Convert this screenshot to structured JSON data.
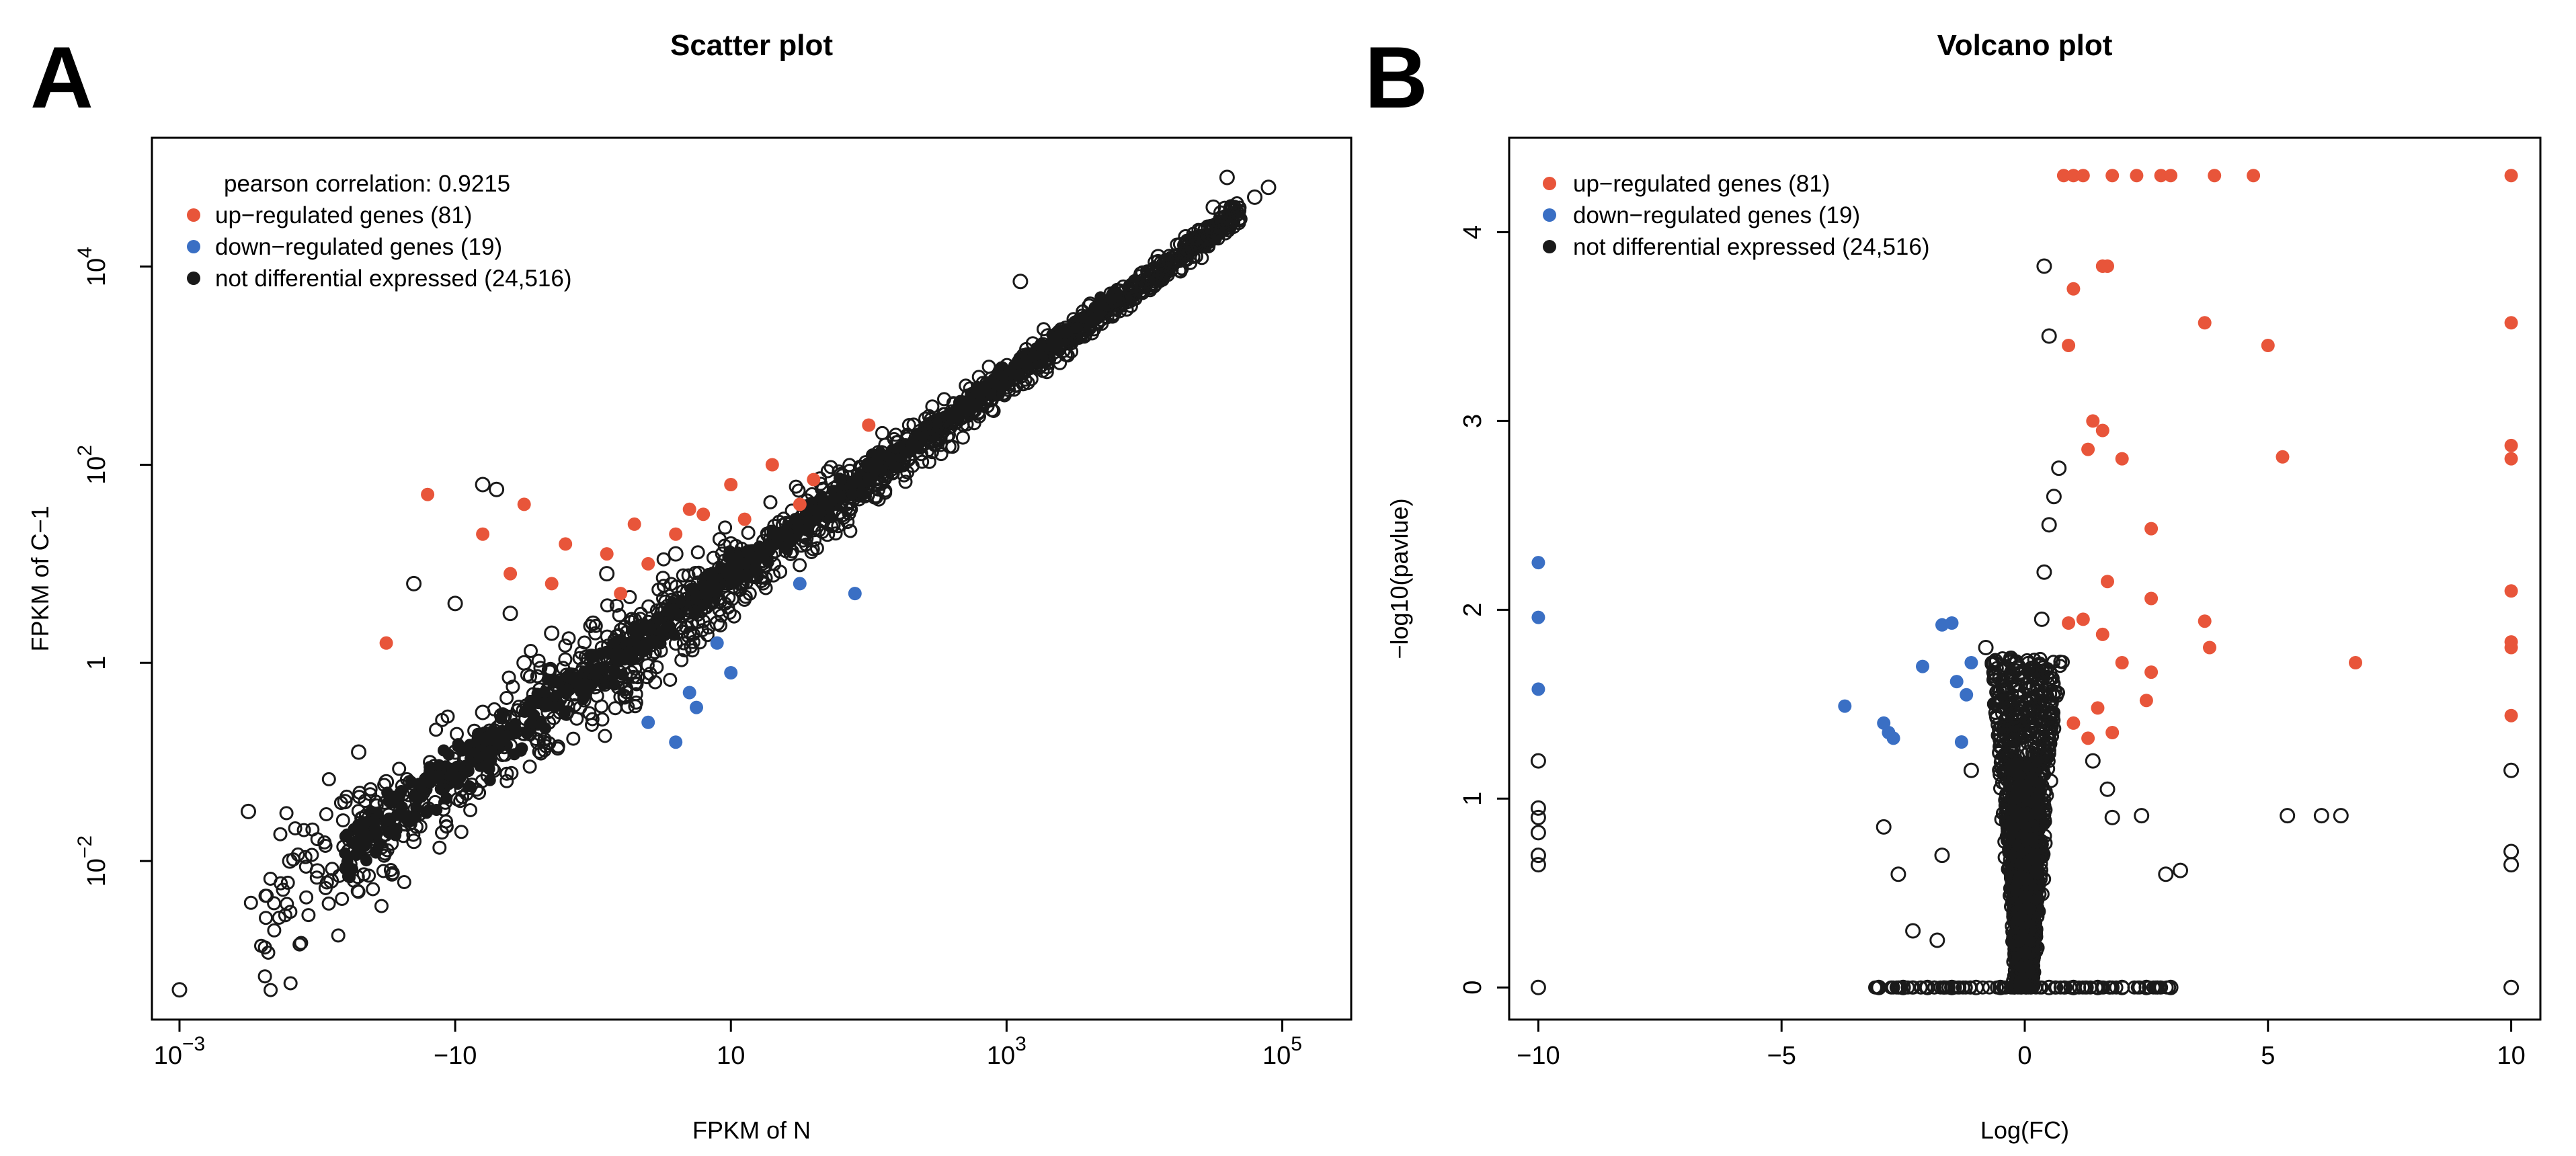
{
  "chart_data": [
    {
      "panel": "A",
      "type": "scatter",
      "title": "Scatter plot",
      "xlabel": "FPKM of N",
      "ylabel": "FPKM of C−1",
      "xscale": "log10",
      "yscale": "log10",
      "xlim_log10": [
        -3.2,
        5.5
      ],
      "ylim_log10": [
        -3.6,
        5.3
      ],
      "x_ticks": [
        {
          "value_log10": -3,
          "base": "10",
          "exp": "−3"
        },
        {
          "value_log10": -1,
          "base": "−10",
          "exp": ""
        },
        {
          "value_log10": 1,
          "base": "10",
          "exp": ""
        },
        {
          "value_log10": 3,
          "base": "10",
          "exp": "3"
        },
        {
          "value_log10": 5,
          "base": "10",
          "exp": "5"
        }
      ],
      "y_ticks": [
        {
          "value_log10": -2,
          "base": "10",
          "exp": "−2"
        },
        {
          "value_log10": 0,
          "base": "1",
          "exp": ""
        },
        {
          "value_log10": 2,
          "base": "10",
          "exp": "2"
        },
        {
          "value_log10": 4,
          "base": "10",
          "exp": "4"
        }
      ],
      "annotation": "pearson correlation: 0.9215",
      "legend_position": "top-left",
      "legend": [
        {
          "label": "up−regulated genes (81)",
          "color": "#e8553a"
        },
        {
          "label": "down−regulated genes (19)",
          "color": "#3a6fc4"
        },
        {
          "label": "not differential expressed (24,516)",
          "color": "#1a1a1a"
        }
      ],
      "series": [
        {
          "name": "up-regulated genes",
          "color": "#e8553a",
          "points_log10": [
            [
              -1.2,
              1.7
            ],
            [
              -0.8,
              1.3
            ],
            [
              -0.5,
              1.6
            ],
            [
              -0.2,
              1.2
            ],
            [
              0.1,
              1.1
            ],
            [
              0.3,
              1.4
            ],
            [
              0.6,
              1.3
            ],
            [
              1.0,
              1.8
            ],
            [
              -0.3,
              0.8
            ],
            [
              0.2,
              0.7
            ],
            [
              0.8,
              1.5
            ],
            [
              1.3,
              2.0
            ],
            [
              2.0,
              2.4
            ],
            [
              1.5,
              1.6
            ],
            [
              -0.6,
              0.9
            ],
            [
              0.4,
              1.0
            ],
            [
              -1.5,
              0.2
            ],
            [
              0.7,
              1.55
            ],
            [
              1.1,
              1.45
            ],
            [
              1.6,
              1.85
            ]
          ]
        },
        {
          "name": "down-regulated genes",
          "color": "#3a6fc4",
          "points_log10": [
            [
              0.4,
              -0.6
            ],
            [
              0.7,
              -0.3
            ],
            [
              1.0,
              -0.1
            ],
            [
              1.5,
              0.8
            ],
            [
              1.9,
              0.7
            ],
            [
              0.6,
              -0.8
            ],
            [
              0.9,
              0.2
            ],
            [
              0.75,
              -0.45
            ]
          ]
        },
        {
          "name": "not differential expressed",
          "color": "#1a1a1a",
          "points_log10": [
            [
              -3.0,
              -3.3
            ],
            [
              -2.2,
              -2.0
            ],
            [
              -2.0,
              -2.1
            ],
            [
              -1.9,
              -2.2
            ],
            [
              -1.6,
              -1.6
            ],
            [
              -1.3,
              -1.8
            ],
            [
              -1.5,
              -1.2
            ],
            [
              -1.0,
              -0.9
            ],
            [
              -0.8,
              -0.5
            ],
            [
              -1.7,
              -0.9
            ],
            [
              -1.1,
              -1.2
            ],
            [
              -0.5,
              0.0
            ],
            [
              -0.3,
              0.3
            ],
            [
              0.0,
              0.4
            ],
            [
              0.5,
              0.5
            ],
            [
              1.0,
              1.2
            ],
            [
              -1.3,
              0.8
            ],
            [
              -0.6,
              0.5
            ],
            [
              0.2,
              -0.2
            ],
            [
              -0.8,
              1.8
            ],
            [
              -0.7,
              1.75
            ],
            [
              -1.0,
              0.6
            ],
            [
              -0.2,
              -0.4
            ],
            [
              0.1,
              0.9
            ],
            [
              1.4,
              1.3
            ],
            [
              2.0,
              2.0
            ],
            [
              2.5,
              2.4
            ],
            [
              3.0,
              2.9
            ],
            [
              3.3,
              3.3
            ],
            [
              3.6,
              3.6
            ],
            [
              3.9,
              3.8
            ],
            [
              4.3,
              4.3
            ],
            [
              4.5,
              4.6
            ],
            [
              4.8,
              4.7
            ],
            [
              4.9,
              4.8
            ],
            [
              4.6,
              4.9
            ],
            [
              3.1,
              3.85
            ],
            [
              2.4,
              2.3
            ],
            [
              2.8,
              2.6
            ],
            [
              0.9,
              0.4
            ],
            [
              1.8,
              1.9
            ],
            [
              3.5,
              3.4
            ],
            [
              4.1,
              4.1
            ],
            [
              -2.5,
              -1.5
            ],
            [
              -1.8,
              -1.4
            ],
            [
              -0.4,
              -0.8
            ],
            [
              0.6,
              1.1
            ],
            [
              1.7,
              1.3
            ]
          ]
        }
      ]
    },
    {
      "panel": "B",
      "type": "scatter",
      "title": "Volcano plot",
      "xlabel": "Log(FC)",
      "ylabel": "−log10(pavlue)",
      "xlim": [
        -10.6,
        10.6
      ],
      "ylim": [
        -0.17,
        4.5
      ],
      "x_ticks": [
        {
          "value": -10,
          "label": "−10"
        },
        {
          "value": -5,
          "label": "−5"
        },
        {
          "value": 0,
          "label": "0"
        },
        {
          "value": 5,
          "label": "5"
        },
        {
          "value": 10,
          "label": "10"
        }
      ],
      "y_ticks": [
        {
          "value": 0,
          "label": "0"
        },
        {
          "value": 1,
          "label": "1"
        },
        {
          "value": 2,
          "label": "2"
        },
        {
          "value": 3,
          "label": "3"
        },
        {
          "value": 4,
          "label": "4"
        }
      ],
      "legend_position": "top-left",
      "legend": [
        {
          "label": "up−regulated genes (81)",
          "color": "#e8553a"
        },
        {
          "label": "down−regulated genes (19)",
          "color": "#3a6fc4"
        },
        {
          "label": "not differential expressed (24,516)",
          "color": "#1a1a1a"
        }
      ],
      "series": [
        {
          "name": "up-regulated genes",
          "color": "#e8553a",
          "points": [
            [
              0.8,
              4.3
            ],
            [
              1.0,
              4.3
            ],
            [
              1.2,
              4.3
            ],
            [
              1.8,
              4.3
            ],
            [
              2.3,
              4.3
            ],
            [
              2.8,
              4.3
            ],
            [
              3.0,
              4.3
            ],
            [
              3.9,
              4.3
            ],
            [
              4.7,
              4.3
            ],
            [
              10,
              4.3
            ],
            [
              1.6,
              3.82
            ],
            [
              1.7,
              3.82
            ],
            [
              1.0,
              3.7
            ],
            [
              0.9,
              3.4
            ],
            [
              3.7,
              3.52
            ],
            [
              5.0,
              3.4
            ],
            [
              10,
              3.52
            ],
            [
              1.4,
              3.0
            ],
            [
              1.6,
              2.95
            ],
            [
              1.3,
              2.85
            ],
            [
              2.0,
              2.8
            ],
            [
              5.3,
              2.81
            ],
            [
              10,
              2.87
            ],
            [
              10,
              2.8
            ],
            [
              2.6,
              2.43
            ],
            [
              1.7,
              2.15
            ],
            [
              2.6,
              2.06
            ],
            [
              10,
              2.1
            ],
            [
              0.9,
              1.93
            ],
            [
              1.2,
              1.95
            ],
            [
              3.7,
              1.94
            ],
            [
              3.8,
              1.8
            ],
            [
              1.6,
              1.87
            ],
            [
              2.0,
              1.72
            ],
            [
              2.6,
              1.67
            ],
            [
              10,
              1.83
            ],
            [
              10,
              1.8
            ],
            [
              6.8,
              1.72
            ],
            [
              1.0,
              1.4
            ],
            [
              1.3,
              1.32
            ],
            [
              1.5,
              1.48
            ],
            [
              1.8,
              1.35
            ],
            [
              2.5,
              1.52
            ],
            [
              10,
              1.44
            ]
          ]
        },
        {
          "name": "down-regulated genes",
          "color": "#3a6fc4",
          "points": [
            [
              -10,
              2.25
            ],
            [
              -10,
              1.96
            ],
            [
              -10,
              1.58
            ],
            [
              -3.7,
              1.49
            ],
            [
              -2.9,
              1.4
            ],
            [
              -2.8,
              1.35
            ],
            [
              -2.7,
              1.32
            ],
            [
              -2.1,
              1.7
            ],
            [
              -1.7,
              1.92
            ],
            [
              -1.5,
              1.93
            ],
            [
              -1.4,
              1.62
            ],
            [
              -1.2,
              1.55
            ],
            [
              -1.1,
              1.72
            ],
            [
              -1.3,
              1.3
            ]
          ]
        },
        {
          "name": "not differential expressed",
          "color": "#1a1a1a",
          "points": [
            [
              -10,
              1.2
            ],
            [
              -10,
              0.95
            ],
            [
              -10,
              0.9
            ],
            [
              -10,
              0.82
            ],
            [
              -10,
              0.7
            ],
            [
              -10,
              0.65
            ],
            [
              -10,
              0.0
            ],
            [
              10,
              1.15
            ],
            [
              10,
              0.72
            ],
            [
              10,
              0.65
            ],
            [
              10,
              0.0
            ],
            [
              0.4,
              3.82
            ],
            [
              0.5,
              3.45
            ],
            [
              0.7,
              2.75
            ],
            [
              0.6,
              2.6
            ],
            [
              0.5,
              2.45
            ],
            [
              0.4,
              2.2
            ],
            [
              0.35,
              1.95
            ],
            [
              -0.8,
              1.8
            ],
            [
              5.4,
              0.91
            ],
            [
              6.1,
              0.91
            ],
            [
              6.5,
              0.91
            ],
            [
              -2.9,
              0.85
            ],
            [
              -2.3,
              0.3
            ],
            [
              -1.8,
              0.25
            ],
            [
              -3.0,
              0.0
            ],
            [
              -2.5,
              0.0
            ],
            [
              -2.0,
              0.0
            ],
            [
              -1.5,
              0.0
            ],
            [
              -1.0,
              0.0
            ],
            [
              -0.5,
              0.0
            ],
            [
              0.5,
              0.0
            ],
            [
              1.0,
              0.0
            ],
            [
              1.5,
              0.0
            ],
            [
              2.0,
              0.0
            ],
            [
              2.5,
              0.0
            ],
            [
              3.0,
              0.0
            ],
            [
              2.4,
              0.91
            ],
            [
              3.2,
              0.62
            ],
            [
              2.9,
              0.6
            ],
            [
              1.8,
              0.9
            ],
            [
              -1.7,
              0.7
            ],
            [
              -2.6,
              0.6
            ],
            [
              -1.1,
              1.15
            ],
            [
              1.4,
              1.2
            ],
            [
              1.7,
              1.05
            ]
          ]
        }
      ]
    }
  ]
}
